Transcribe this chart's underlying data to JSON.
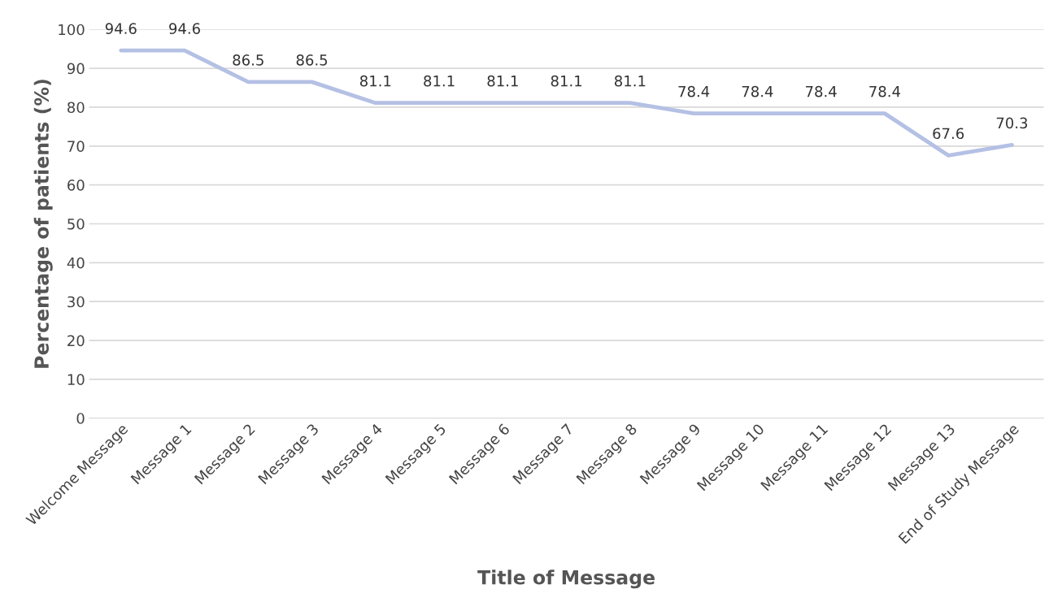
{
  "chart_data": {
    "type": "line",
    "xlabel": "Title of Message",
    "ylabel": "Percentage of patients (%)",
    "categories": [
      "Welcome Message",
      "Message 1",
      "Message 2",
      "Message 3",
      "Message 4",
      "Message 5",
      "Message 6",
      "Message 7",
      "Message 8",
      "Message 9",
      "Message 10",
      "Message 11",
      "Message 12",
      "Message 13",
      "End of Study Message"
    ],
    "series": [
      {
        "color": "#b4c0e4",
        "values": [
          94.6,
          94.6,
          86.5,
          86.5,
          81.1,
          81.1,
          81.1,
          81.1,
          81.1,
          78.4,
          78.4,
          78.4,
          78.4,
          67.6,
          70.3
        ]
      }
    ],
    "ylim": [
      0,
      100
    ],
    "yticks": [
      0,
      10,
      20,
      30,
      40,
      50,
      60,
      70,
      80,
      90,
      100
    ],
    "grid": "y",
    "data_labels": true,
    "marker": "none",
    "line_style": "solid"
  }
}
